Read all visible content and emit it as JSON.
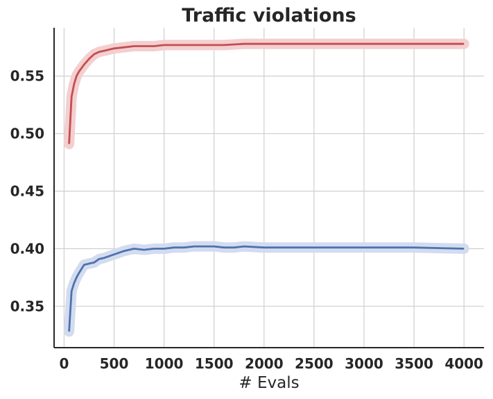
{
  "chart_data": {
    "type": "line",
    "title": "Traffic violations",
    "xlabel": "# Evals",
    "ylabel": "",
    "xlim": [
      -100,
      4200
    ],
    "ylim": [
      0.314,
      0.592
    ],
    "xticks": [
      0,
      500,
      1000,
      1500,
      2000,
      2500,
      3000,
      3500,
      4000
    ],
    "xtick_labels": [
      "0",
      "500",
      "1000",
      "1500",
      "2000",
      "2500",
      "3000",
      "3500",
      "4000"
    ],
    "yticks": [
      0.35,
      0.4,
      0.45,
      0.5,
      0.55
    ],
    "ytick_labels": [
      "0.35",
      "0.40",
      "0.45",
      "0.50",
      "0.55"
    ],
    "grid": true,
    "legend": "none",
    "series": [
      {
        "color": "#c44e52",
        "band_color": "#f3cfd0",
        "x": [
          50,
          75,
          100,
          125,
          150,
          200,
          250,
          300,
          350,
          400,
          500,
          600,
          700,
          800,
          900,
          1000,
          1200,
          1400,
          1600,
          1800,
          2000,
          2500,
          3000,
          3500,
          4000
        ],
        "y": [
          0.491,
          0.532,
          0.543,
          0.55,
          0.554,
          0.56,
          0.565,
          0.569,
          0.571,
          0.572,
          0.574,
          0.575,
          0.576,
          0.576,
          0.576,
          0.577,
          0.577,
          0.577,
          0.577,
          0.578,
          0.578,
          0.578,
          0.578,
          0.578,
          0.578
        ]
      },
      {
        "color": "#4c72b0",
        "band_color": "#d3dcee",
        "x": [
          50,
          75,
          100,
          125,
          150,
          200,
          250,
          300,
          350,
          400,
          500,
          600,
          700,
          800,
          900,
          1000,
          1100,
          1200,
          1300,
          1400,
          1500,
          1600,
          1700,
          1800,
          2000,
          2500,
          3000,
          3500,
          4000
        ],
        "y": [
          0.328,
          0.363,
          0.37,
          0.375,
          0.379,
          0.386,
          0.387,
          0.388,
          0.391,
          0.392,
          0.395,
          0.398,
          0.4,
          0.399,
          0.4,
          0.4,
          0.401,
          0.401,
          0.402,
          0.402,
          0.402,
          0.401,
          0.401,
          0.402,
          0.401,
          0.401,
          0.401,
          0.401,
          0.4
        ]
      }
    ]
  }
}
